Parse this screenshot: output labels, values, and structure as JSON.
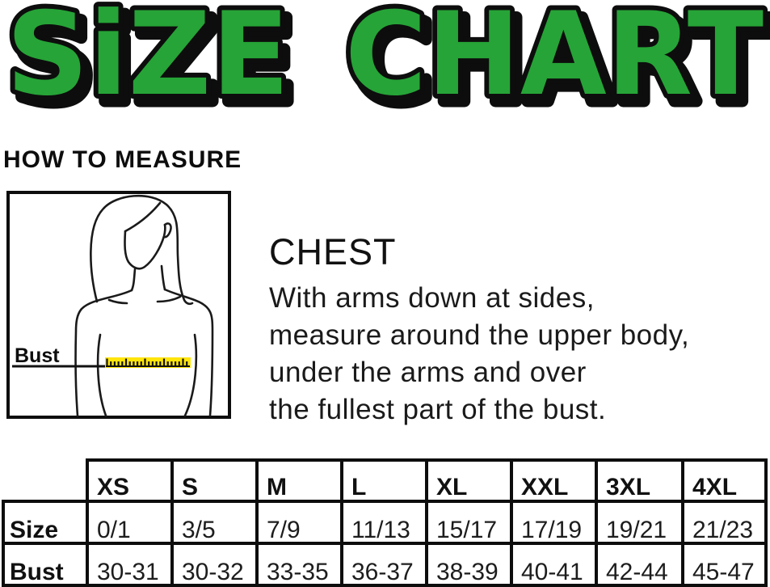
{
  "title": {
    "word1": "SiZE",
    "word2": "CHART"
  },
  "colors": {
    "title_green": "#26a437",
    "outline_black": "#0d0d0d",
    "tape_yellow": "#ffe50a"
  },
  "how_to_measure": {
    "heading": "HOW TO MEASURE"
  },
  "figure": {
    "bust_label": "Bust"
  },
  "chest": {
    "heading": "CHEST",
    "lines": [
      "With arms down at sides,",
      "measure around the upper body,",
      "under the arms and over",
      "the fullest part of the bust."
    ]
  },
  "size_table": {
    "columns": [
      "XS",
      "S",
      "M",
      "L",
      "XL",
      "XXL",
      "3XL",
      "4XL"
    ],
    "rows": [
      {
        "label": "Size",
        "values": [
          "0/1",
          "3/5",
          "7/9",
          "11/13",
          "15/17",
          "17/19",
          "19/21",
          "21/23"
        ]
      },
      {
        "label": "Bust",
        "values": [
          "30-31",
          "30-32",
          "33-35",
          "36-37",
          "38-39",
          "40-41",
          "42-44",
          "45-47"
        ]
      }
    ]
  }
}
